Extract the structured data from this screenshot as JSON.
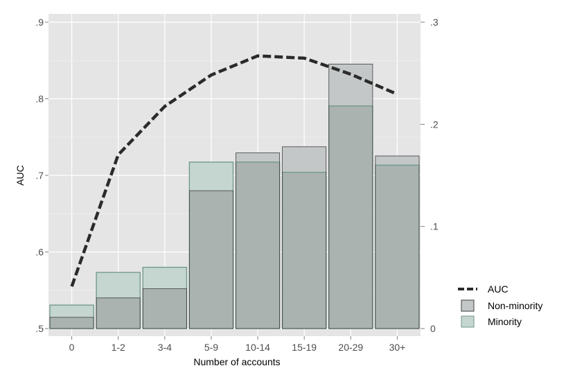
{
  "chart_data": {
    "type": "bar",
    "categories": [
      "0",
      "1-2",
      "3-4",
      "5-9",
      "10-14",
      "15-19",
      "20-29",
      "30+"
    ],
    "xlabel": "Number of accounts",
    "ylabel": "AUC",
    "ylim": [
      0.5,
      0.9
    ],
    "y2lim": [
      0,
      0.3
    ],
    "yticks": [
      ".5",
      ".6",
      ".7",
      ".8",
      ".9"
    ],
    "y2ticks": [
      "0",
      ".1",
      ".2",
      ".3"
    ],
    "grid": true,
    "legend_position": "right",
    "series": [
      {
        "name": "AUC",
        "kind": "line",
        "axis": "left",
        "values": [
          0.555,
          0.727,
          0.79,
          0.831,
          0.856,
          0.853,
          0.832,
          0.806
        ]
      },
      {
        "name": "Non-minority",
        "kind": "bar",
        "axis": "right",
        "values": [
          0.011,
          0.03,
          0.039,
          0.135,
          0.172,
          0.178,
          0.259,
          0.169
        ]
      },
      {
        "name": "Minority",
        "kind": "bar",
        "axis": "right",
        "values": [
          0.023,
          0.055,
          0.06,
          0.163,
          0.163,
          0.153,
          0.218,
          0.16
        ]
      }
    ],
    "colors": {
      "panel": "#e5e5e5",
      "grid_major": "#ffffff",
      "grid_minor": "#f2f2f2",
      "nonminority_fill": "#c4c7c7",
      "nonminority_stroke": "#3d3d3d",
      "minority_fill": "#c5d6d1",
      "minority_stroke": "#6e958a",
      "overlap_fill": "#aab3b0",
      "line": "#2b2b2b"
    }
  }
}
